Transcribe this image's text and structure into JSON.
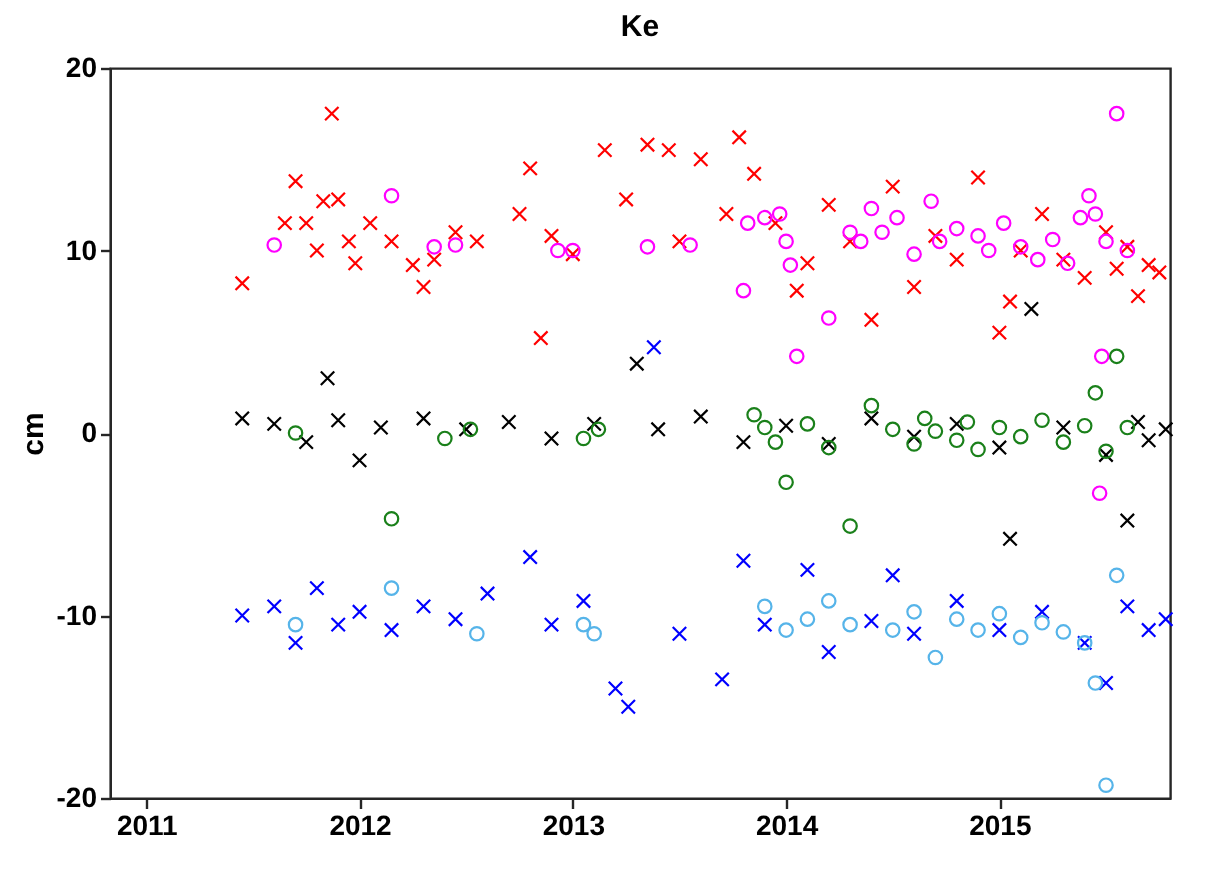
{
  "chart_data": {
    "type": "scatter",
    "title": "Ke",
    "ylabel": "cm",
    "xlim": [
      2010.83,
      2015.8
    ],
    "xticks": [
      2011,
      2012,
      2013,
      2014,
      2015
    ],
    "ylim": [
      -20,
      20
    ],
    "yticks": [
      -20,
      -10,
      0,
      10,
      20
    ],
    "grid": false,
    "legend": false,
    "series": [
      {
        "color": "#ff0000",
        "marker": "cross",
        "x": [
          2011.45,
          2011.65,
          2011.7,
          2011.75,
          2011.8,
          2011.83,
          2011.87,
          2011.9,
          2011.95,
          2011.98,
          2012.05,
          2012.15,
          2012.25,
          2012.3,
          2012.35,
          2012.45,
          2012.55,
          2012.75,
          2012.8,
          2012.85,
          2012.9,
          2013.0,
          2013.15,
          2013.25,
          2013.35,
          2013.45,
          2013.5,
          2013.6,
          2013.72,
          2013.78,
          2013.85,
          2013.95,
          2014.05,
          2014.1,
          2014.2,
          2014.3,
          2014.4,
          2014.5,
          2014.6,
          2014.7,
          2014.8,
          2014.9,
          2015.0,
          2015.05,
          2015.1,
          2015.2,
          2015.3,
          2015.4,
          2015.5,
          2015.55,
          2015.6,
          2015.65,
          2015.7,
          2015.75
        ],
        "values": [
          8.2,
          11.5,
          13.8,
          11.5,
          10,
          12.7,
          17.5,
          12.8,
          10.5,
          9.3,
          11.5,
          10.5,
          9.2,
          8,
          9.5,
          11,
          10.5,
          12,
          14.5,
          5.2,
          10.8,
          9.8,
          15.5,
          12.8,
          15.8,
          15.5,
          10.5,
          15,
          12,
          16.2,
          14.2,
          11.5,
          7.8,
          9.3,
          12.5,
          10.5,
          6.2,
          13.5,
          8,
          10.8,
          9.5,
          14,
          5.5,
          7.2,
          10,
          12,
          9.5,
          8.5,
          11,
          9,
          10.2,
          7.5,
          9.2,
          8.8
        ]
      },
      {
        "color": "#ff00ff",
        "marker": "circle",
        "x": [
          2011.6,
          2012.15,
          2012.35,
          2012.45,
          2012.93,
          2013.0,
          2013.35,
          2013.55,
          2013.8,
          2013.82,
          2013.9,
          2013.97,
          2014.0,
          2014.02,
          2014.05,
          2014.2,
          2014.3,
          2014.35,
          2014.4,
          2014.45,
          2014.52,
          2014.6,
          2014.68,
          2014.72,
          2014.8,
          2014.9,
          2014.95,
          2015.02,
          2015.1,
          2015.18,
          2015.25,
          2015.32,
          2015.38,
          2015.42,
          2015.45,
          2015.47,
          2015.48,
          2015.5,
          2015.55,
          2015.6
        ],
        "values": [
          10.3,
          13,
          10.2,
          10.3,
          10,
          10,
          10.2,
          10.3,
          7.8,
          11.5,
          11.8,
          12,
          10.5,
          9.2,
          4.2,
          6.3,
          11,
          10.5,
          12.3,
          11,
          11.8,
          9.8,
          12.7,
          10.5,
          11.2,
          10.8,
          10,
          11.5,
          10.2,
          9.5,
          10.6,
          9.3,
          11.8,
          13,
          12,
          -3.3,
          4.2,
          10.5,
          17.5,
          10
        ]
      },
      {
        "color": "#000000",
        "marker": "cross",
        "x": [
          2011.45,
          2011.6,
          2011.75,
          2011.85,
          2011.9,
          2012.0,
          2012.1,
          2012.3,
          2012.5,
          2012.7,
          2012.9,
          2013.1,
          2013.3,
          2013.4,
          2013.6,
          2013.8,
          2014.0,
          2014.2,
          2014.4,
          2014.6,
          2014.8,
          2015.0,
          2015.05,
          2015.15,
          2015.3,
          2015.5,
          2015.6,
          2015.65,
          2015.7,
          2015.78
        ],
        "values": [
          0.8,
          0.5,
          -0.5,
          3,
          0.7,
          -1.5,
          0.3,
          0.8,
          0.2,
          0.6,
          -0.3,
          0.5,
          3.8,
          0.2,
          0.9,
          -0.5,
          0.4,
          -0.6,
          0.8,
          -0.2,
          0.5,
          -0.8,
          -5.8,
          6.8,
          0.3,
          -1.2,
          -4.8,
          0.6,
          -0.4,
          0.2
        ]
      },
      {
        "color": "#1a801a",
        "marker": "circle",
        "x": [
          2011.7,
          2012.15,
          2012.4,
          2012.52,
          2013.05,
          2013.12,
          2013.85,
          2013.9,
          2013.95,
          2014.0,
          2014.1,
          2014.2,
          2014.3,
          2014.4,
          2014.5,
          2014.6,
          2014.65,
          2014.7,
          2014.8,
          2014.85,
          2014.9,
          2015.0,
          2015.1,
          2015.2,
          2015.3,
          2015.4,
          2015.45,
          2015.5,
          2015.55,
          2015.6
        ],
        "values": [
          0,
          -4.7,
          -0.3,
          0.2,
          -0.3,
          0.2,
          1,
          0.3,
          -0.5,
          -2.7,
          0.5,
          -0.8,
          -5.1,
          1.5,
          0.2,
          -0.6,
          0.8,
          0.1,
          -0.4,
          0.6,
          -0.9,
          0.3,
          -0.2,
          0.7,
          -0.5,
          0.4,
          2.2,
          -1,
          4.2,
          0.3
        ]
      },
      {
        "color": "#0000ff",
        "marker": "cross",
        "x": [
          2011.45,
          2011.6,
          2011.7,
          2011.8,
          2011.9,
          2012.0,
          2012.15,
          2012.3,
          2012.45,
          2012.6,
          2012.8,
          2012.9,
          2013.05,
          2013.2,
          2013.26,
          2013.38,
          2013.5,
          2013.7,
          2013.8,
          2013.9,
          2014.1,
          2014.2,
          2014.4,
          2014.5,
          2014.6,
          2014.8,
          2015.0,
          2015.2,
          2015.4,
          2015.5,
          2015.6,
          2015.7,
          2015.78
        ],
        "values": [
          -10,
          -9.5,
          -11.5,
          -8.5,
          -10.5,
          -9.8,
          -10.8,
          -9.5,
          -10.2,
          -8.8,
          -6.8,
          -10.5,
          -9.2,
          -14,
          -15,
          4.7,
          -11,
          -13.5,
          -7,
          -10.5,
          -7.5,
          -12,
          -10.3,
          -7.8,
          -11,
          -9.2,
          -10.8,
          -9.8,
          -11.5,
          -13.7,
          -9.5,
          -10.8,
          -10.2
        ]
      },
      {
        "color": "#56b4e9",
        "marker": "circle",
        "x": [
          2011.7,
          2012.15,
          2012.55,
          2013.05,
          2013.1,
          2013.9,
          2014.0,
          2014.1,
          2014.2,
          2014.3,
          2014.5,
          2014.6,
          2014.7,
          2014.8,
          2014.9,
          2015.0,
          2015.1,
          2015.2,
          2015.3,
          2015.4,
          2015.45,
          2015.5,
          2015.55
        ],
        "values": [
          -10.5,
          -8.5,
          -11,
          -10.5,
          -11,
          -9.5,
          -10.8,
          -10.2,
          -9.2,
          -10.5,
          -10.8,
          -9.8,
          -12.3,
          -10.2,
          -10.8,
          -9.9,
          -11.2,
          -10.4,
          -10.9,
          -11.5,
          -13.7,
          -19.3,
          -7.8
        ]
      }
    ]
  }
}
